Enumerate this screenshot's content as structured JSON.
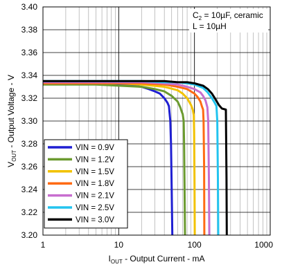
{
  "chart_data": {
    "type": "line",
    "xscale": "log",
    "xlim": [
      1,
      1000
    ],
    "ylim": [
      3.2,
      3.4
    ],
    "xticks": [
      {
        "value": 1,
        "label": "1"
      },
      {
        "value": 10,
        "label": "10"
      },
      {
        "value": 100,
        "label": "100"
      },
      {
        "value": 1000,
        "label": "1000"
      }
    ],
    "yticks": [
      {
        "value": 3.2,
        "label": "3.20"
      },
      {
        "value": 3.22,
        "label": "3.22"
      },
      {
        "value": 3.24,
        "label": "3.24"
      },
      {
        "value": 3.26,
        "label": "3.26"
      },
      {
        "value": 3.28,
        "label": "3.28"
      },
      {
        "value": 3.3,
        "label": "3.30"
      },
      {
        "value": 3.32,
        "label": "3.32"
      },
      {
        "value": 3.34,
        "label": "3.34"
      },
      {
        "value": 3.36,
        "label": "3.36"
      },
      {
        "value": 3.38,
        "label": "3.38"
      },
      {
        "value": 3.4,
        "label": "3.40"
      }
    ],
    "grid": true,
    "legend_position": "bottom-left",
    "xlabel": {
      "main": "I",
      "sub": "OUT",
      "rest": " - Output Current - mA"
    },
    "ylabel": {
      "main": "V",
      "sub": "OUT",
      "rest": " - Output Voltage - V"
    },
    "annotations": [
      {
        "main": "C",
        "sub": "2",
        "rest": " = 10µF, ceramic"
      },
      {
        "main": "L = 10µH",
        "sub": "",
        "rest": ""
      }
    ],
    "series": [
      {
        "name": "VIN = 0.9V",
        "color": "#1f1fd2",
        "x": [
          1,
          2,
          5,
          10,
          15,
          20,
          25,
          30,
          35,
          40,
          44,
          46,
          48,
          49,
          50,
          51
        ],
        "y": [
          3.333,
          3.333,
          3.333,
          3.332,
          3.331,
          3.33,
          3.328,
          3.326,
          3.324,
          3.32,
          3.316,
          3.313,
          3.3,
          3.28,
          3.24,
          3.2
        ]
      },
      {
        "name": "VIN = 1.2V",
        "color": "#6b9a2f",
        "x": [
          1,
          5,
          10,
          20,
          30,
          40,
          50,
          60,
          65,
          68,
          70,
          72,
          73,
          74,
          75
        ],
        "y": [
          3.332,
          3.332,
          3.331,
          3.33,
          3.328,
          3.326,
          3.322,
          3.317,
          3.312,
          3.308,
          3.306,
          3.3,
          3.28,
          3.24,
          3.2
        ]
      },
      {
        "name": "VIN = 1.5V",
        "color": "#f2c200",
        "x": [
          1,
          5,
          10,
          20,
          40,
          60,
          70,
          80,
          90,
          95,
          98,
          99,
          100,
          101
        ],
        "y": [
          3.333,
          3.333,
          3.333,
          3.332,
          3.33,
          3.327,
          3.324,
          3.32,
          3.314,
          3.31,
          3.305,
          3.29,
          3.25,
          3.2
        ]
      },
      {
        "name": "VIN = 1.8V",
        "color": "#ff6a13",
        "x": [
          1,
          5,
          10,
          20,
          40,
          60,
          80,
          100,
          110,
          120,
          125,
          130,
          132,
          134,
          135
        ],
        "y": [
          3.333,
          3.333,
          3.333,
          3.333,
          3.332,
          3.33,
          3.328,
          3.324,
          3.321,
          3.317,
          3.313,
          3.31,
          3.3,
          3.26,
          3.2
        ]
      },
      {
        "name": "VIN = 2.1V",
        "color": "#c86ecf",
        "x": [
          1,
          5,
          10,
          20,
          40,
          60,
          80,
          100,
          120,
          130,
          140,
          148,
          152,
          155,
          157
        ],
        "y": [
          3.334,
          3.334,
          3.334,
          3.334,
          3.333,
          3.332,
          3.33,
          3.328,
          3.325,
          3.322,
          3.318,
          3.312,
          3.3,
          3.25,
          3.2
        ]
      },
      {
        "name": "VIN = 2.5V",
        "color": "#22c4ef",
        "x": [
          1,
          5,
          10,
          20,
          40,
          60,
          80,
          100,
          130,
          150,
          170,
          185,
          195,
          200,
          204,
          206
        ],
        "y": [
          3.335,
          3.335,
          3.335,
          3.335,
          3.334,
          3.334,
          3.333,
          3.332,
          3.329,
          3.325,
          3.32,
          3.316,
          3.313,
          3.3,
          3.25,
          3.2
        ]
      },
      {
        "name": "VIN = 3.0V",
        "color": "#000000",
        "x": [
          1,
          5,
          10,
          20,
          40,
          60,
          80,
          100,
          130,
          150,
          170,
          190,
          210,
          230,
          260,
          265,
          267
        ],
        "y": [
          3.335,
          3.335,
          3.335,
          3.335,
          3.335,
          3.334,
          3.334,
          3.333,
          3.331,
          3.328,
          3.324,
          3.319,
          3.314,
          3.311,
          3.31,
          3.25,
          3.2
        ]
      }
    ]
  }
}
